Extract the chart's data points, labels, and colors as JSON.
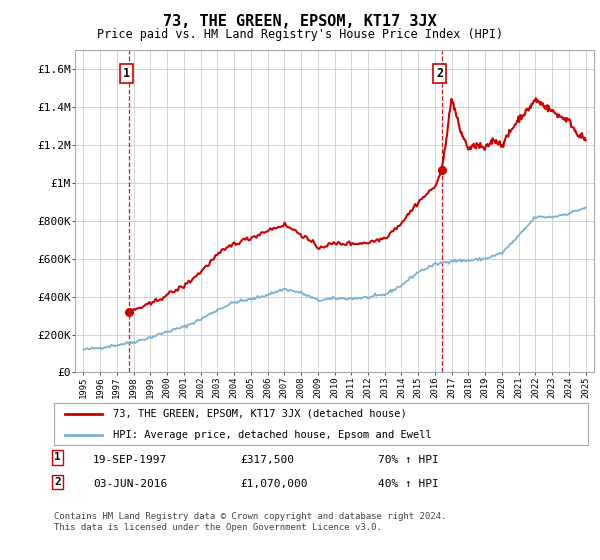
{
  "title": "73, THE GREEN, EPSOM, KT17 3JX",
  "subtitle": "Price paid vs. HM Land Registry's House Price Index (HPI)",
  "legend_label_red": "73, THE GREEN, EPSOM, KT17 3JX (detached house)",
  "legend_label_blue": "HPI: Average price, detached house, Epsom and Ewell",
  "transaction1_date": "19-SEP-1997",
  "transaction1_price": "£317,500",
  "transaction1_hpi": "70% ↑ HPI",
  "transaction1_year": 1997.72,
  "transaction1_value": 317500,
  "transaction2_date": "03-JUN-2016",
  "transaction2_price": "£1,070,000",
  "transaction2_hpi": "40% ↑ HPI",
  "transaction2_year": 2016.42,
  "transaction2_value": 1070000,
  "footer": "Contains HM Land Registry data © Crown copyright and database right 2024.\nThis data is licensed under the Open Government Licence v3.0.",
  "ylim": [
    0,
    1700000
  ],
  "xlim": [
    1994.5,
    2025.5
  ],
  "yticks": [
    0,
    200000,
    400000,
    600000,
    800000,
    1000000,
    1200000,
    1400000,
    1600000
  ],
  "ytick_labels": [
    "£0",
    "£200K",
    "£400K",
    "£600K",
    "£800K",
    "£1M",
    "£1.2M",
    "£1.4M",
    "£1.6M"
  ],
  "red_color": "#cc0000",
  "blue_color": "#7bafd4",
  "vline_color": "#cc0000",
  "grid_color": "#cccccc",
  "background_color": "#ffffff",
  "hpi_keypoints": [
    [
      1995,
      120000
    ],
    [
      1996,
      130000
    ],
    [
      1997,
      145000
    ],
    [
      1998,
      160000
    ],
    [
      1999,
      185000
    ],
    [
      2000,
      215000
    ],
    [
      2001,
      240000
    ],
    [
      2002,
      280000
    ],
    [
      2003,
      330000
    ],
    [
      2004,
      370000
    ],
    [
      2005,
      385000
    ],
    [
      2006,
      410000
    ],
    [
      2007,
      440000
    ],
    [
      2008,
      420000
    ],
    [
      2009,
      380000
    ],
    [
      2010,
      390000
    ],
    [
      2011,
      390000
    ],
    [
      2012,
      395000
    ],
    [
      2013,
      410000
    ],
    [
      2014,
      460000
    ],
    [
      2015,
      530000
    ],
    [
      2016,
      570000
    ],
    [
      2017,
      590000
    ],
    [
      2018,
      590000
    ],
    [
      2019,
      600000
    ],
    [
      2020,
      630000
    ],
    [
      2021,
      720000
    ],
    [
      2022,
      820000
    ],
    [
      2023,
      820000
    ],
    [
      2024,
      840000
    ],
    [
      2025,
      870000
    ]
  ],
  "red_keypoints_seg1": [
    [
      1997.72,
      317500
    ],
    [
      1998,
      330000
    ],
    [
      1999,
      360000
    ],
    [
      2000,
      410000
    ],
    [
      2001,
      455000
    ],
    [
      2002,
      530000
    ],
    [
      2003,
      620000
    ],
    [
      2004,
      680000
    ],
    [
      2005,
      710000
    ],
    [
      2006,
      750000
    ],
    [
      2007,
      780000
    ],
    [
      2008,
      730000
    ],
    [
      2009,
      660000
    ],
    [
      2010,
      680000
    ],
    [
      2011,
      680000
    ],
    [
      2012,
      685000
    ],
    [
      2013,
      710000
    ],
    [
      2014,
      790000
    ],
    [
      2015,
      900000
    ],
    [
      2016,
      980000
    ],
    [
      2016.42,
      1070000
    ]
  ],
  "red_keypoints_seg2": [
    [
      2016.42,
      1070000
    ],
    [
      2017,
      1450000
    ],
    [
      2017.5,
      1280000
    ],
    [
      2018,
      1180000
    ],
    [
      2018.5,
      1200000
    ],
    [
      2019,
      1180000
    ],
    [
      2019.5,
      1230000
    ],
    [
      2020,
      1200000
    ],
    [
      2020.5,
      1270000
    ],
    [
      2021,
      1340000
    ],
    [
      2021.5,
      1380000
    ],
    [
      2022,
      1440000
    ],
    [
      2022.5,
      1410000
    ],
    [
      2023,
      1380000
    ],
    [
      2023.5,
      1350000
    ],
    [
      2024,
      1330000
    ],
    [
      2024.5,
      1260000
    ],
    [
      2025,
      1230000
    ]
  ]
}
